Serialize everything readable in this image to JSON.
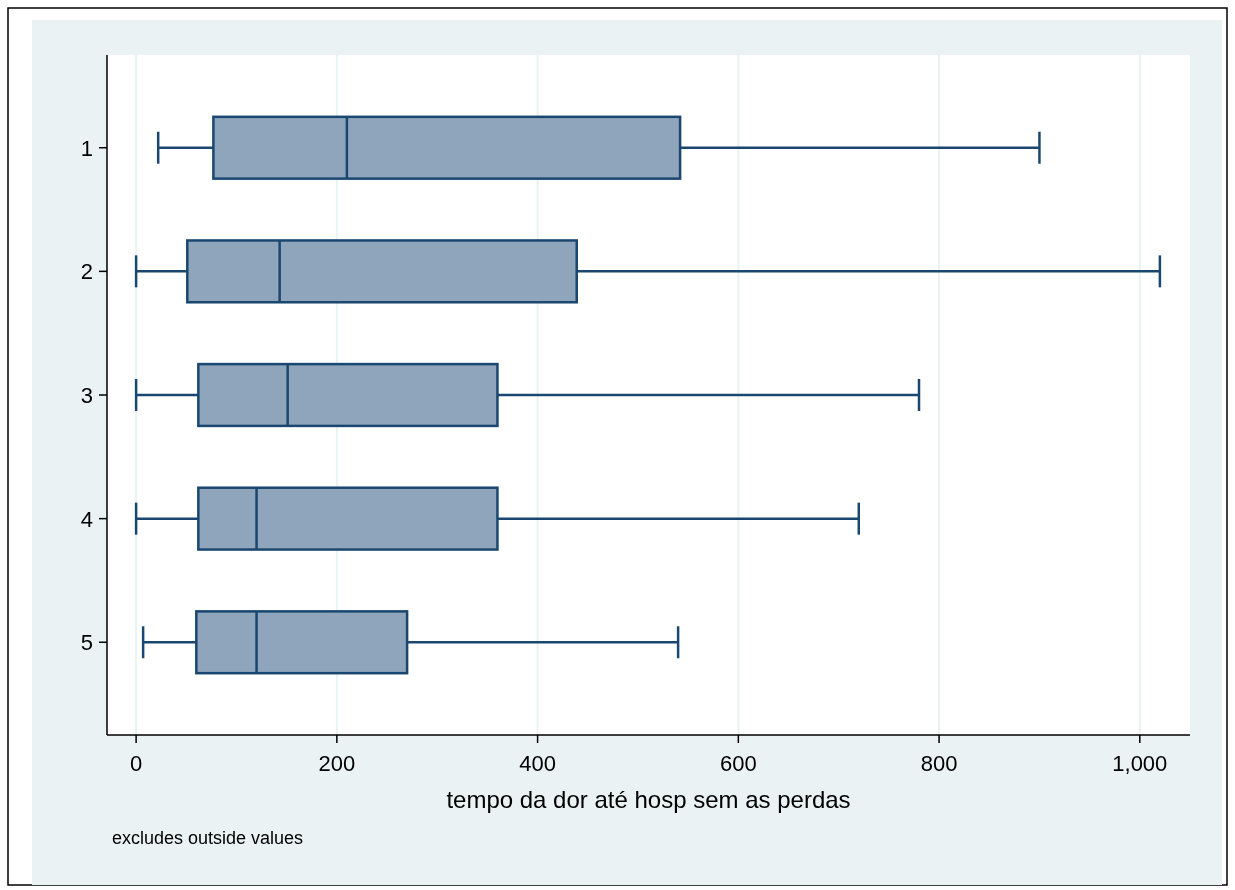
{
  "chart_data": {
    "type": "box",
    "orientation": "horizontal",
    "xlabel": "tempo da dor até hosp sem as perdas",
    "annotations": [
      "excludes outside values"
    ],
    "categories": [
      "1",
      "2",
      "3",
      "4",
      "5"
    ],
    "color": "#8ea5bb",
    "boxes": [
      {
        "low": 22,
        "q1": 77,
        "median": 210,
        "q3": 542,
        "high": 900
      },
      {
        "low": 0,
        "q1": 51,
        "median": 143,
        "q3": 439,
        "high": 1020
      },
      {
        "low": 0,
        "q1": 62,
        "median": 151,
        "q3": 360,
        "high": 780
      },
      {
        "low": 0,
        "q1": 62,
        "median": 120,
        "q3": 360,
        "high": 720
      },
      {
        "low": 7,
        "q1": 60,
        "median": 120,
        "q3": 270,
        "high": 540
      }
    ],
    "xlim": [
      -29,
      1050
    ],
    "xticks": [
      0,
      200,
      400,
      600,
      800,
      {
        "value": 1000,
        "label": "1,000"
      }
    ],
    "grid": "x"
  }
}
